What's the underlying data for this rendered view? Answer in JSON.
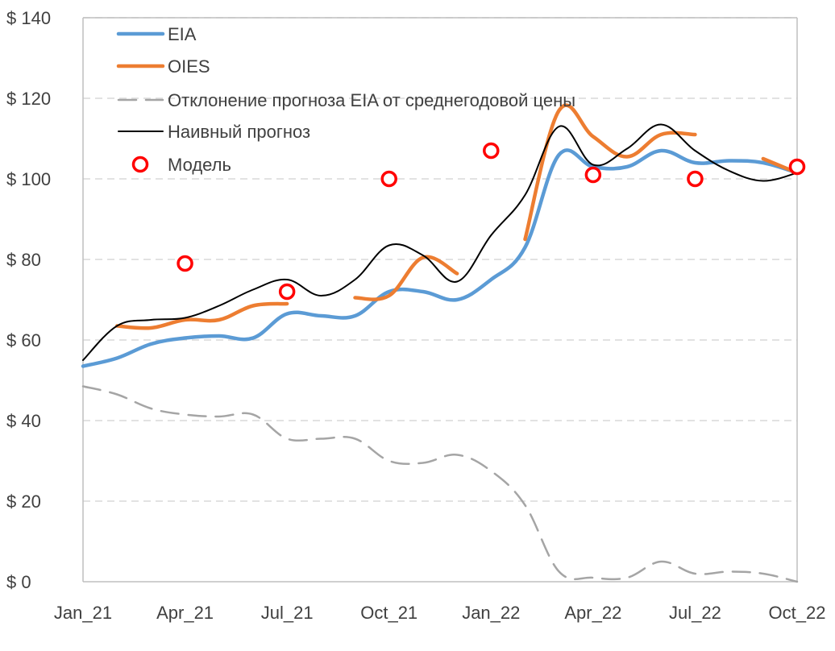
{
  "chart_data": {
    "type": "line",
    "title": "",
    "xlabel": "",
    "ylabel": "",
    "x_ticks": [
      "Jan_21",
      "Apr_21",
      "Jul_21",
      "Oct_21",
      "Jan_22",
      "Apr_22",
      "Jul_22",
      "Oct_22"
    ],
    "y_ticks": [
      "$ 0",
      "$ 20",
      "$ 40",
      "$ 60",
      "$ 80",
      "$ 100",
      "$ 120",
      "$ 140"
    ],
    "ylim": [
      0,
      140
    ],
    "xlim": [
      "Jan_21",
      "Oct_22"
    ],
    "grid": "horizontal dashed",
    "legend_position": "top-left",
    "series": [
      {
        "name": "EIA",
        "style": "line",
        "color": "#5B9BD5",
        "x": [
          0,
          1,
          2,
          3,
          4,
          5,
          6,
          7,
          8,
          9,
          10,
          11,
          12,
          13,
          14,
          15,
          16,
          17,
          18,
          19,
          20,
          21
        ],
        "values": [
          53.5,
          55.5,
          59,
          60.5,
          61,
          60.5,
          66.5,
          66,
          66,
          72,
          72,
          70,
          75,
          83,
          106,
          103,
          103,
          107,
          104,
          104.5,
          104,
          101.5
        ]
      },
      {
        "name": "OIES",
        "style": "line",
        "color": "#ED7D31",
        "segments": [
          {
            "x": [
              1,
              2,
              3,
              4,
              5,
              6
            ],
            "values": [
              63.5,
              63,
              65,
              65,
              68.5,
              69
            ]
          },
          {
            "x": [
              8,
              9,
              10,
              11
            ],
            "values": [
              70.5,
              71,
              80.5,
              76.5
            ]
          },
          {
            "x": [
              13,
              14,
              15,
              16,
              17,
              18
            ],
            "values": [
              85,
              117,
              110.5,
              105.5,
              111,
              111
            ]
          },
          {
            "x": [
              20,
              21
            ],
            "values": [
              105,
              101.5
            ]
          }
        ]
      },
      {
        "name": "Отклонение прогноза EIA от среднегодовой цены",
        "style": "dashed",
        "color": "#A5A5A5",
        "x": [
          0,
          1,
          2,
          3,
          4,
          5,
          6,
          7,
          8,
          9,
          10,
          11,
          12,
          13,
          14,
          15,
          16,
          17,
          18,
          19,
          20,
          21
        ],
        "values": [
          48.5,
          46.5,
          43,
          41.5,
          41,
          41.5,
          35.5,
          35.5,
          35.5,
          30,
          29.5,
          31.5,
          27.5,
          19,
          2.5,
          1,
          1,
          5,
          2,
          2.5,
          2,
          0
        ]
      },
      {
        "name": "Наивный прогноз",
        "style": "line",
        "color": "#000000",
        "x": [
          0,
          1,
          2,
          3,
          4,
          5,
          6,
          7,
          8,
          9,
          10,
          11,
          12,
          13,
          14,
          15,
          16,
          17,
          18,
          19,
          20,
          21
        ],
        "values": [
          55,
          63.5,
          65,
          65.5,
          68.5,
          72.5,
          75,
          71,
          75,
          83.5,
          81,
          74.5,
          86,
          96,
          113,
          103.5,
          107.5,
          113.5,
          107,
          102,
          99.5,
          101.5
        ]
      },
      {
        "name": "Модель",
        "style": "markers",
        "color": "#FF0000",
        "x": [
          3,
          6,
          9,
          12,
          15,
          18,
          21
        ],
        "values": [
          79,
          72,
          100,
          107,
          101,
          100,
          103
        ]
      }
    ]
  }
}
